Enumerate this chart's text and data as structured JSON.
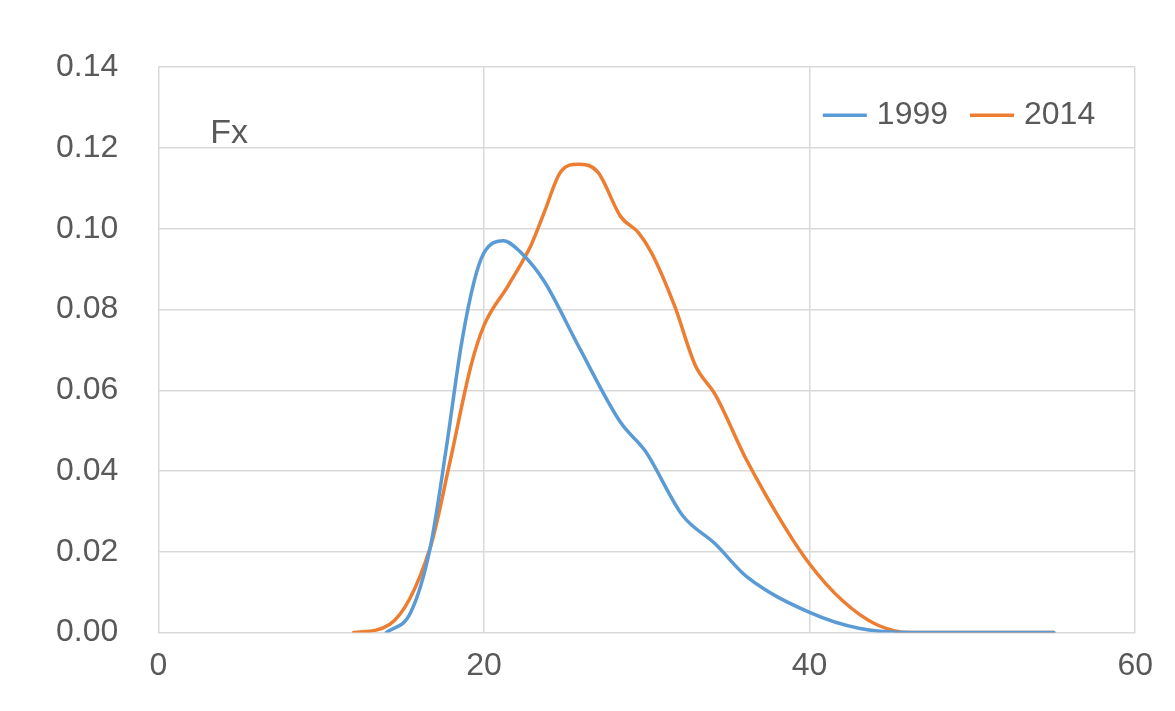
{
  "chart_data": {
    "type": "line",
    "annotations": [
      "Fx"
    ],
    "xlim": [
      0,
      60
    ],
    "xticks": [
      0,
      20,
      40,
      60
    ],
    "ylim": [
      0,
      0.14
    ],
    "yticks": [
      {
        "value": 0,
        "label": "0.00"
      },
      {
        "value": 0.02,
        "label": "0.02"
      },
      {
        "value": 0.04,
        "label": "0.04"
      },
      {
        "value": 0.06,
        "label": "0.06"
      },
      {
        "value": 0.08,
        "label": "0.08"
      },
      {
        "value": 0.1,
        "label": "0.10"
      },
      {
        "value": 0.12,
        "label": "0.12"
      },
      {
        "value": 0.14,
        "label": "0.14"
      }
    ],
    "grid": true,
    "legend": "top right",
    "marker": "none",
    "line_style": "solid",
    "series": [
      {
        "name": "1999",
        "color": "#5b9bd5",
        "x": [
          14,
          15.5,
          16.7,
          17.7,
          18.6,
          19.4,
          20,
          21.2,
          22.3,
          23.7,
          25.8,
          28.4,
          29.9,
          32.2,
          34.2,
          36.1,
          40,
          43.1,
          46.2,
          50,
          55
        ],
        "values": [
          0,
          0.005,
          0.021,
          0.046,
          0.071,
          0.087,
          0.094,
          0.097,
          0.094,
          0.087,
          0.071,
          0.052,
          0.045,
          0.029,
          0.022,
          0.014,
          0.005,
          0.001,
          0,
          0,
          0
        ]
      },
      {
        "name": "2014",
        "color": "#ed7d31",
        "x": [
          12,
          14.2,
          16.7,
          17.9,
          19.2,
          20,
          21.5,
          22.9,
          23.7,
          24.7,
          25.8,
          27,
          28.4,
          29.5,
          30.3,
          31.7,
          33,
          34.2,
          36.1,
          38.5,
          40,
          42,
          44.1,
          46.2,
          50,
          55
        ],
        "values": [
          0,
          0.002,
          0.021,
          0.042,
          0.066,
          0.076,
          0.086,
          0.096,
          0.104,
          0.114,
          0.116,
          0.114,
          0.103,
          0.099,
          0.094,
          0.081,
          0.066,
          0.059,
          0.043,
          0.026,
          0.017,
          0.008,
          0.002,
          0,
          0,
          0
        ]
      }
    ]
  }
}
